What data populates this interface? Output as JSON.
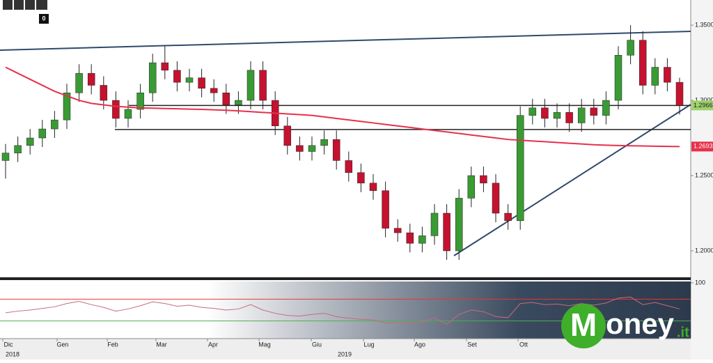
{
  "chart_data": {
    "type": "candlestick",
    "open": [
      1.26,
      1.265,
      1.27,
      1.275,
      1.281,
      1.287,
      1.305,
      1.318,
      1.31,
      1.3,
      1.288,
      1.294,
      1.305,
      1.325,
      1.32,
      1.312,
      1.315,
      1.308,
      1.305,
      1.297,
      1.3,
      1.32,
      1.3,
      1.283,
      1.27,
      1.266,
      1.27,
      1.274,
      1.26,
      1.252,
      1.245,
      1.24,
      1.215,
      1.212,
      1.205,
      1.21,
      1.225,
      1.2,
      1.235,
      1.25,
      1.245,
      1.225,
      1.22,
      1.29,
      1.295,
      1.288,
      1.292,
      1.285,
      1.295,
      1.29,
      1.3,
      1.33,
      1.34,
      1.31,
      1.322,
      1.312
    ],
    "high": [
      1.271,
      1.276,
      1.281,
      1.287,
      1.293,
      1.311,
      1.324,
      1.324,
      1.316,
      1.306,
      1.3,
      1.311,
      1.331,
      1.336,
      1.326,
      1.321,
      1.321,
      1.314,
      1.311,
      1.306,
      1.326,
      1.326,
      1.306,
      1.289,
      1.276,
      1.276,
      1.28,
      1.28,
      1.266,
      1.258,
      1.251,
      1.246,
      1.221,
      1.218,
      1.216,
      1.231,
      1.231,
      1.241,
      1.256,
      1.256,
      1.251,
      1.231,
      1.296,
      1.301,
      1.301,
      1.298,
      1.298,
      1.301,
      1.301,
      1.306,
      1.336,
      1.35,
      1.346,
      1.328,
      1.328,
      1.315
    ],
    "low": [
      1.248,
      1.259,
      1.264,
      1.269,
      1.275,
      1.281,
      1.299,
      1.304,
      1.294,
      1.282,
      1.282,
      1.288,
      1.299,
      1.314,
      1.306,
      1.306,
      1.302,
      1.299,
      1.291,
      1.291,
      1.294,
      1.294,
      1.277,
      1.264,
      1.26,
      1.26,
      1.264,
      1.254,
      1.246,
      1.239,
      1.234,
      1.209,
      1.206,
      1.199,
      1.199,
      1.204,
      1.194,
      1.194,
      1.229,
      1.239,
      1.219,
      1.214,
      1.214,
      1.284,
      1.282,
      1.282,
      1.279,
      1.279,
      1.284,
      1.284,
      1.294,
      1.324,
      1.304,
      1.304,
      1.306,
      1.2906
    ],
    "close": [
      1.265,
      1.27,
      1.275,
      1.281,
      1.287,
      1.305,
      1.318,
      1.31,
      1.3,
      1.288,
      1.294,
      1.305,
      1.325,
      1.32,
      1.312,
      1.315,
      1.308,
      1.305,
      1.297,
      1.3,
      1.32,
      1.3,
      1.283,
      1.27,
      1.266,
      1.27,
      1.274,
      1.26,
      1.252,
      1.245,
      1.24,
      1.215,
      1.212,
      1.205,
      1.21,
      1.225,
      1.2,
      1.235,
      1.25,
      1.245,
      1.225,
      1.22,
      1.29,
      1.295,
      1.288,
      1.292,
      1.285,
      1.295,
      1.29,
      1.3,
      1.33,
      1.34,
      1.31,
      1.322,
      1.312,
      1.2966
    ],
    "ma": [
      1.322,
      1.318,
      1.314,
      1.31,
      1.306,
      1.303,
      1.3,
      1.298,
      1.297,
      1.296,
      1.2955,
      1.295,
      1.2948,
      1.2946,
      1.2944,
      1.2942,
      1.294,
      1.2937,
      1.2934,
      1.293,
      1.2925,
      1.292,
      1.2915,
      1.291,
      1.2905,
      1.29,
      1.289,
      1.288,
      1.287,
      1.286,
      1.285,
      1.284,
      1.283,
      1.282,
      1.281,
      1.28,
      1.279,
      1.278,
      1.277,
      1.276,
      1.275,
      1.274,
      1.2735,
      1.273,
      1.2725,
      1.272,
      1.2715,
      1.271,
      1.2705,
      1.2702,
      1.27,
      1.2698,
      1.2697,
      1.2695,
      1.2694,
      1.2693
    ],
    "up_color": "#3a9a34",
    "down_color": "#c4122f",
    "ma_color": "#e8304a",
    "levels": [
      1.2966,
      1.2806
    ],
    "ylim": [
      1.1824,
      1.3667
    ],
    "yticks": [
      {
        "value": 1.2,
        "label": "1.2000"
      },
      {
        "value": 1.25,
        "label": "1.2500"
      },
      {
        "value": 1.3,
        "label": "1.3000"
      },
      {
        "value": 1.35,
        "label": "1.3500"
      }
    ],
    "months": [
      "Dic",
      "Gen",
      "Feb",
      "Mar",
      "Apr",
      "Mag",
      "Giu",
      "Lug",
      "Ago",
      "Set",
      "Ott"
    ],
    "years": [
      "2018",
      "2019"
    ],
    "rsi": [
      45,
      48,
      50,
      53,
      56,
      62,
      66,
      60,
      55,
      48,
      52,
      58,
      65,
      62,
      57,
      59,
      55,
      53,
      50,
      52,
      60,
      50,
      44,
      40,
      39,
      42,
      44,
      38,
      35,
      33,
      32,
      26,
      27,
      25,
      28,
      35,
      24,
      42,
      50,
      47,
      38,
      36,
      62,
      64,
      60,
      61,
      58,
      62,
      59,
      63,
      72,
      74,
      60,
      64,
      58,
      52
    ],
    "rsi_levels": [
      70,
      30
    ],
    "rsi_ylim": [
      0,
      100
    ],
    "rsi_yticks": [
      100
    ]
  },
  "toolbar": {
    "counter": "0"
  },
  "logo": {
    "letter": "M",
    "text": "oney",
    "suffix": ".it"
  }
}
